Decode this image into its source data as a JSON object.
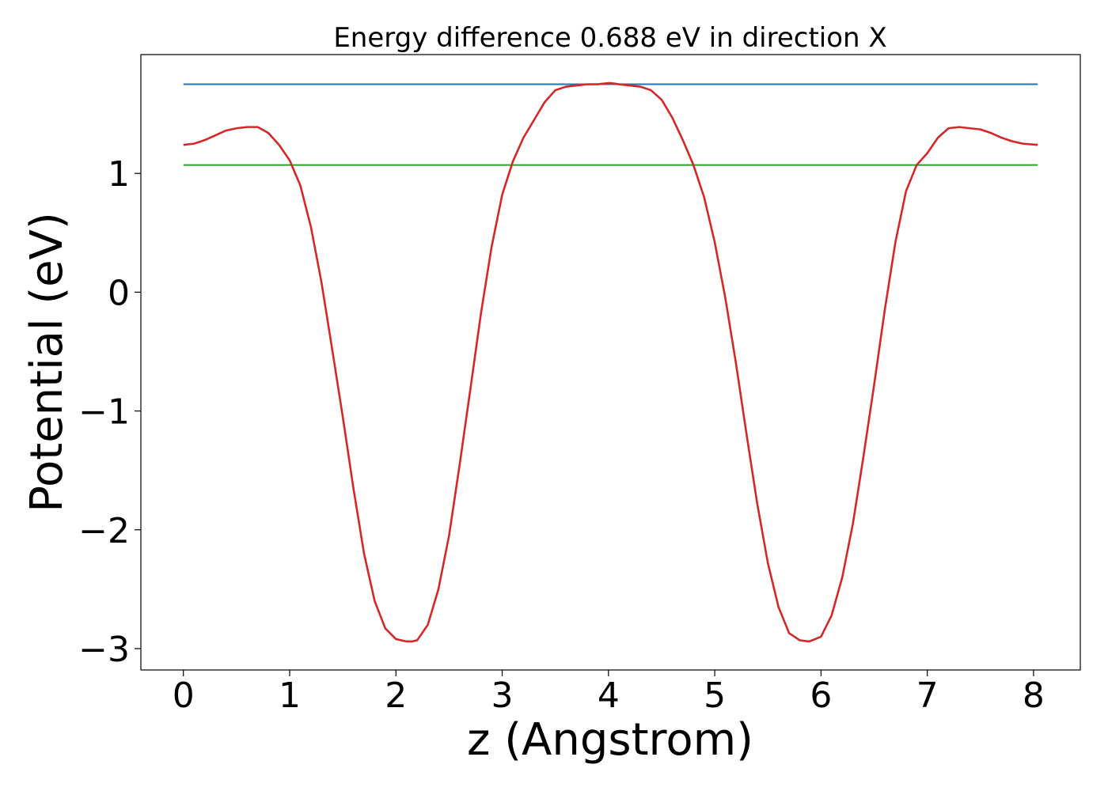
{
  "chart_data": {
    "type": "line",
    "title": "Energy difference 0.688 eV in direction X",
    "xlabel": "z (Angstrom)",
    "ylabel": "Potential (eV)",
    "xlim": [
      -0.4,
      8.44
    ],
    "ylim": [
      -3.18,
      2.0
    ],
    "x_ticks": [
      0,
      1,
      2,
      3,
      4,
      5,
      6,
      7,
      8
    ],
    "x_tick_labels": [
      "0",
      "1",
      "2",
      "3",
      "4",
      "5",
      "6",
      "7",
      "8"
    ],
    "y_ticks": [
      1,
      0,
      -1,
      -2,
      -3
    ],
    "y_tick_labels": [
      "1",
      "0",
      "−1",
      "−2",
      "−3"
    ],
    "grid": false,
    "series": [
      {
        "color": "#1f77b4",
        "x": [
          0,
          8.04
        ],
        "y": [
          1.75,
          1.75
        ]
      },
      {
        "color": "#2ca02c",
        "x": [
          0,
          8.04
        ],
        "y": [
          1.07,
          1.07
        ]
      },
      {
        "color": "#d62728",
        "x": [
          0,
          0.1,
          0.2,
          0.3,
          0.4,
          0.5,
          0.6,
          0.7,
          0.8,
          0.9,
          1.0,
          1.1,
          1.2,
          1.3,
          1.4,
          1.5,
          1.6,
          1.7,
          1.8,
          1.9,
          2.0,
          2.1,
          2.15,
          2.2,
          2.3,
          2.4,
          2.5,
          2.6,
          2.7,
          2.8,
          2.9,
          3.0,
          3.1,
          3.2,
          3.3,
          3.4,
          3.5,
          3.6,
          3.7,
          3.8,
          3.9,
          4.0,
          4.02,
          4.1,
          4.2,
          4.3,
          4.4,
          4.5,
          4.6,
          4.7,
          4.8,
          4.9,
          5.0,
          5.1,
          5.2,
          5.3,
          5.4,
          5.5,
          5.6,
          5.7,
          5.8,
          5.89,
          6.0,
          6.1,
          6.2,
          6.3,
          6.4,
          6.5,
          6.6,
          6.7,
          6.8,
          6.9,
          7.0,
          7.1,
          7.2,
          7.3,
          7.4,
          7.5,
          7.6,
          7.7,
          7.8,
          7.9,
          8.04
        ],
        "y": [
          1.24,
          1.25,
          1.28,
          1.32,
          1.36,
          1.38,
          1.39,
          1.39,
          1.34,
          1.24,
          1.11,
          0.9,
          0.55,
          0.08,
          -0.48,
          -1.05,
          -1.65,
          -2.2,
          -2.6,
          -2.83,
          -2.92,
          -2.94,
          -2.94,
          -2.93,
          -2.8,
          -2.5,
          -2.05,
          -1.45,
          -0.82,
          -0.18,
          0.38,
          0.82,
          1.1,
          1.3,
          1.45,
          1.6,
          1.7,
          1.73,
          1.74,
          1.75,
          1.75,
          1.76,
          1.76,
          1.75,
          1.74,
          1.73,
          1.7,
          1.62,
          1.47,
          1.28,
          1.07,
          0.8,
          0.42,
          -0.05,
          -0.6,
          -1.2,
          -1.78,
          -2.28,
          -2.65,
          -2.87,
          -2.93,
          -2.94,
          -2.9,
          -2.72,
          -2.4,
          -1.95,
          -1.38,
          -0.78,
          -0.15,
          0.42,
          0.85,
          1.07,
          1.17,
          1.3,
          1.38,
          1.39,
          1.38,
          1.37,
          1.34,
          1.3,
          1.27,
          1.25,
          1.24
        ]
      }
    ]
  }
}
